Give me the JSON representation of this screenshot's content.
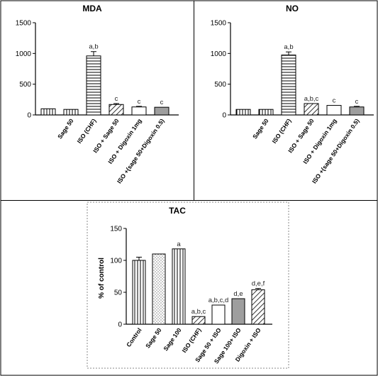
{
  "chart_data": [
    {
      "type": "bar",
      "title": "MDA",
      "categories": [
        "",
        "Sage 50",
        "ISO (CHF)",
        "ISO + Sage 50",
        "ISO + Digoxin 1mg",
        "ISO +(sage 50+Digoxin 0.5)"
      ],
      "values": [
        100,
        90,
        960,
        170,
        130,
        125
      ],
      "errors": [
        0,
        0,
        70,
        15,
        10,
        0
      ],
      "annotations": [
        "",
        "",
        "a,b",
        "c",
        "c",
        "c"
      ],
      "patterns": [
        "vlines",
        "vlines",
        "hlines",
        "diag",
        "white",
        "gray"
      ],
      "yticks": [
        0,
        500,
        1000,
        1500
      ],
      "ylim": [
        0,
        1500
      ],
      "xlabel": "",
      "ylabel": ""
    },
    {
      "type": "bar",
      "title": "NO",
      "categories": [
        "",
        "Sage 50",
        "ISO (CHF)",
        "ISO + Sage 50",
        "ISO + Digoxin 1mg",
        "ISO +(sage 50+Digoxin 0.5)"
      ],
      "values": [
        90,
        90,
        975,
        185,
        155,
        130
      ],
      "errors": [
        0,
        0,
        50,
        0,
        0,
        10
      ],
      "annotations": [
        "",
        "",
        "a,b",
        "a,b,c",
        "c",
        "c"
      ],
      "patterns": [
        "vlines",
        "vlines",
        "hlines",
        "diag",
        "white",
        "gray"
      ],
      "yticks": [
        0,
        500,
        1000,
        1500
      ],
      "ylim": [
        0,
        1500
      ],
      "xlabel": "",
      "ylabel": ""
    },
    {
      "type": "bar",
      "title": "TAC",
      "categories": [
        "Control",
        "Sage 50",
        "Sage 100",
        "ISO (CHF)",
        "Sage 50 + ISO",
        "Sage 100+ ISO",
        "Digoxin + ISO"
      ],
      "values": [
        100,
        110,
        118,
        12,
        30,
        40,
        54
      ],
      "errors": [
        5,
        0,
        0,
        0,
        0,
        0,
        2
      ],
      "annotations": [
        "",
        "",
        "a",
        "a,b,c",
        "a,b,c,d",
        "d,e",
        "d,e,f"
      ],
      "patterns": [
        "vlines",
        "dots",
        "vlines",
        "diag",
        "white",
        "gray",
        "diag"
      ],
      "yticks": [
        0,
        50,
        100,
        150
      ],
      "ylim": [
        0,
        150
      ],
      "xlabel": "",
      "ylabel": "% of control"
    }
  ]
}
